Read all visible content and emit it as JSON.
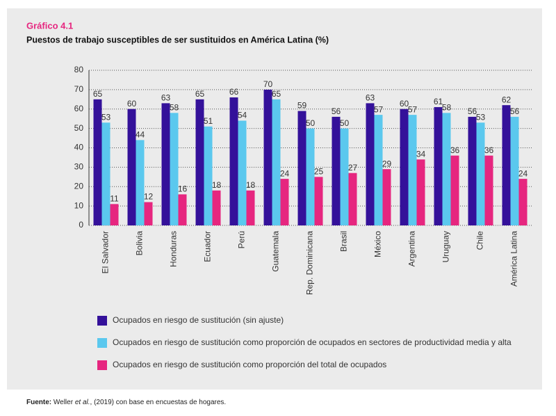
{
  "chart_data": {
    "type": "bar",
    "title": "Gráfico 4.1",
    "subtitle": "Puestos de trabajo susceptibles de ser sustituidos en América Latina (%)",
    "categories": [
      "El Salvador",
      "Bolivia",
      "Honduras",
      "Ecuador",
      "Perú",
      "Guatemala",
      "Rep. Dominicana",
      "Brasil",
      "México",
      "Argentina",
      "Uruguay",
      "Chile",
      "América Latina"
    ],
    "series": [
      {
        "name": "Ocupados en riesgo de sustitución (sin ajuste)",
        "color": "#34119a",
        "values": [
          65,
          60,
          63,
          65,
          66,
          70,
          59,
          56,
          63,
          60,
          61,
          56,
          62
        ]
      },
      {
        "name": "Ocupados en riesgo de sustitución como proporción de ocupados en sectores de productividad media y alta",
        "color": "#5bc8ee",
        "values": [
          53,
          44,
          58,
          51,
          54,
          65,
          50,
          50,
          57,
          57,
          58,
          53,
          56
        ]
      },
      {
        "name": "Ocupados en riesgo de sustitución como proporción del total de ocupados",
        "color": "#e6267f",
        "values": [
          11,
          12,
          16,
          18,
          18,
          24,
          25,
          27,
          29,
          34,
          36,
          36,
          24
        ]
      }
    ],
    "ylim": [
      0,
      80
    ],
    "yticks": [
      0,
      10,
      20,
      30,
      40,
      50,
      60,
      70,
      80
    ],
    "grid": true,
    "source": {
      "label": "Fuente:",
      "text1": "Weller ",
      "italic": "et al.",
      "text2": ", (2019) con base en encuestas de hogares."
    }
  }
}
